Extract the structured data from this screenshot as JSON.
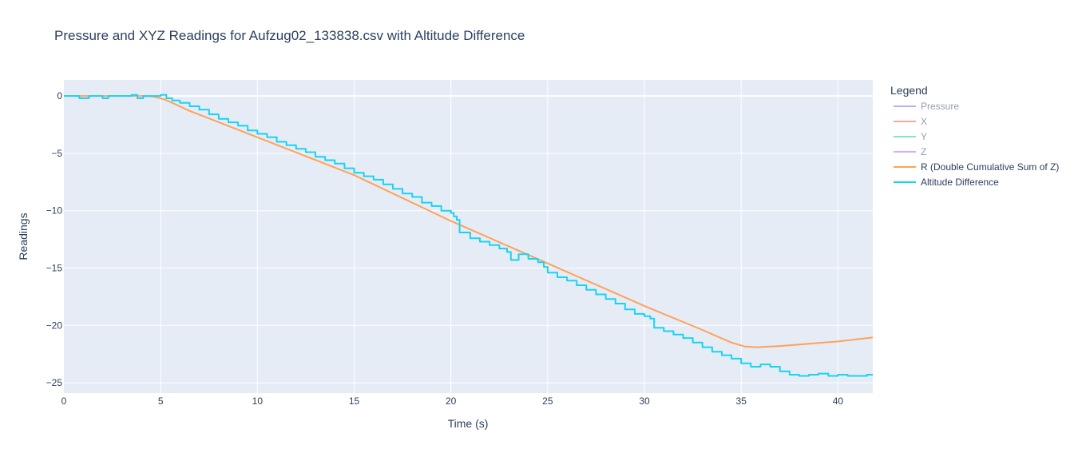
{
  "chart_data": {
    "type": "line",
    "title": "Pressure and XYZ Readings for Aufzug02_133838.csv with Altitude Difference",
    "xlabel": "Time (s)",
    "ylabel": "Readings",
    "xlim": [
      0,
      41.8
    ],
    "ylim": [
      -25.9,
      1.4
    ],
    "grid": true,
    "x_ticks": [
      0,
      5,
      10,
      15,
      20,
      25,
      30,
      35,
      40
    ],
    "y_ticks": [
      0,
      -5,
      -10,
      -15,
      -20,
      -25
    ],
    "x_tick_labels": [
      "0",
      "5",
      "10",
      "15",
      "20",
      "25",
      "30",
      "35",
      "40"
    ],
    "y_tick_labels": [
      "0",
      "−5",
      "−10",
      "−15",
      "−20",
      "−25"
    ],
    "legend_title": "Legend",
    "legend_position": "right",
    "series": [
      {
        "name": "Pressure",
        "color": "#636efa",
        "visible": false,
        "x": [],
        "y": []
      },
      {
        "name": "X",
        "color": "#ef553b",
        "visible": false,
        "x": [],
        "y": []
      },
      {
        "name": "Y",
        "color": "#00cc96",
        "visible": false,
        "x": [],
        "y": []
      },
      {
        "name": "Z",
        "color": "#ab63fa",
        "visible": false,
        "x": [],
        "y": []
      },
      {
        "name": "R (Double Cumulative Sum of Z)",
        "color": "#ffa15a",
        "visible": true,
        "x": [
          0,
          1,
          2,
          3,
          4,
          4.6,
          5.2,
          5.8,
          6.5,
          10,
          15,
          20,
          25,
          30,
          33,
          34.5,
          35.2,
          35.8,
          37,
          40,
          41.8
        ],
        "y": [
          0,
          0,
          0,
          0,
          0,
          -0.05,
          -0.3,
          -0.75,
          -1.3,
          -3.6,
          -6.9,
          -10.9,
          -14.6,
          -18.3,
          -20.4,
          -21.5,
          -21.85,
          -21.9,
          -21.8,
          -21.4,
          -21.05
        ]
      },
      {
        "name": "Altitude Difference",
        "color": "#19d3f3",
        "visible": true,
        "x": [
          0,
          0.3,
          0.8,
          1.3,
          2.0,
          2.3,
          2.6,
          3.0,
          3.5,
          3.8,
          4.1,
          4.5,
          5.0,
          5.3,
          5.6,
          6.0,
          6.5,
          7.0,
          7.5,
          8.0,
          8.5,
          9.0,
          9.5,
          10.0,
          10.5,
          11.0,
          11.5,
          12.0,
          12.5,
          13.0,
          13.5,
          14.0,
          14.5,
          15.0,
          15.5,
          16.0,
          16.5,
          17.0,
          17.5,
          18.0,
          18.5,
          19.0,
          19.5,
          20.0,
          20.15,
          20.3,
          20.45,
          21.0,
          21.5,
          22.0,
          22.5,
          22.9,
          23.1,
          23.5,
          24.0,
          24.5,
          24.8,
          25.0,
          25.5,
          26.0,
          26.5,
          27.0,
          27.5,
          28.0,
          28.5,
          29.0,
          29.5,
          30.0,
          30.3,
          30.5,
          31.0,
          31.5,
          32.0,
          32.5,
          33.0,
          33.5,
          34.0,
          34.5,
          35.0,
          35.5,
          36.0,
          36.5,
          37.0,
          37.5,
          38.0,
          38.5,
          39.0,
          39.5,
          40.0,
          40.5,
          41.0,
          41.5,
          41.8
        ],
        "y": [
          0,
          0,
          -0.2,
          0,
          -0.2,
          0,
          0,
          0,
          0.1,
          -0.2,
          0,
          0,
          0.1,
          -0.2,
          -0.4,
          -0.6,
          -0.9,
          -1.2,
          -1.6,
          -2.0,
          -2.3,
          -2.6,
          -3.0,
          -3.3,
          -3.6,
          -4.0,
          -4.3,
          -4.6,
          -4.9,
          -5.3,
          -5.6,
          -5.9,
          -6.3,
          -6.7,
          -7.0,
          -7.3,
          -7.7,
          -8.1,
          -8.5,
          -8.8,
          -9.3,
          -9.6,
          -10.0,
          -10.2,
          -10.5,
          -10.8,
          -11.9,
          -12.4,
          -12.7,
          -13.0,
          -13.3,
          -13.6,
          -14.3,
          -13.8,
          -14.2,
          -14.5,
          -14.9,
          -15.4,
          -15.8,
          -16.1,
          -16.5,
          -16.9,
          -17.3,
          -17.7,
          -18.1,
          -18.6,
          -19.0,
          -19.2,
          -19.4,
          -20.2,
          -20.5,
          -20.8,
          -21.1,
          -21.5,
          -21.9,
          -22.3,
          -22.6,
          -22.9,
          -23.3,
          -23.6,
          -23.4,
          -23.6,
          -24.0,
          -24.3,
          -24.4,
          -24.3,
          -24.2,
          -24.4,
          -24.3,
          -24.4,
          -24.4,
          -24.3,
          -24.3
        ]
      }
    ]
  }
}
